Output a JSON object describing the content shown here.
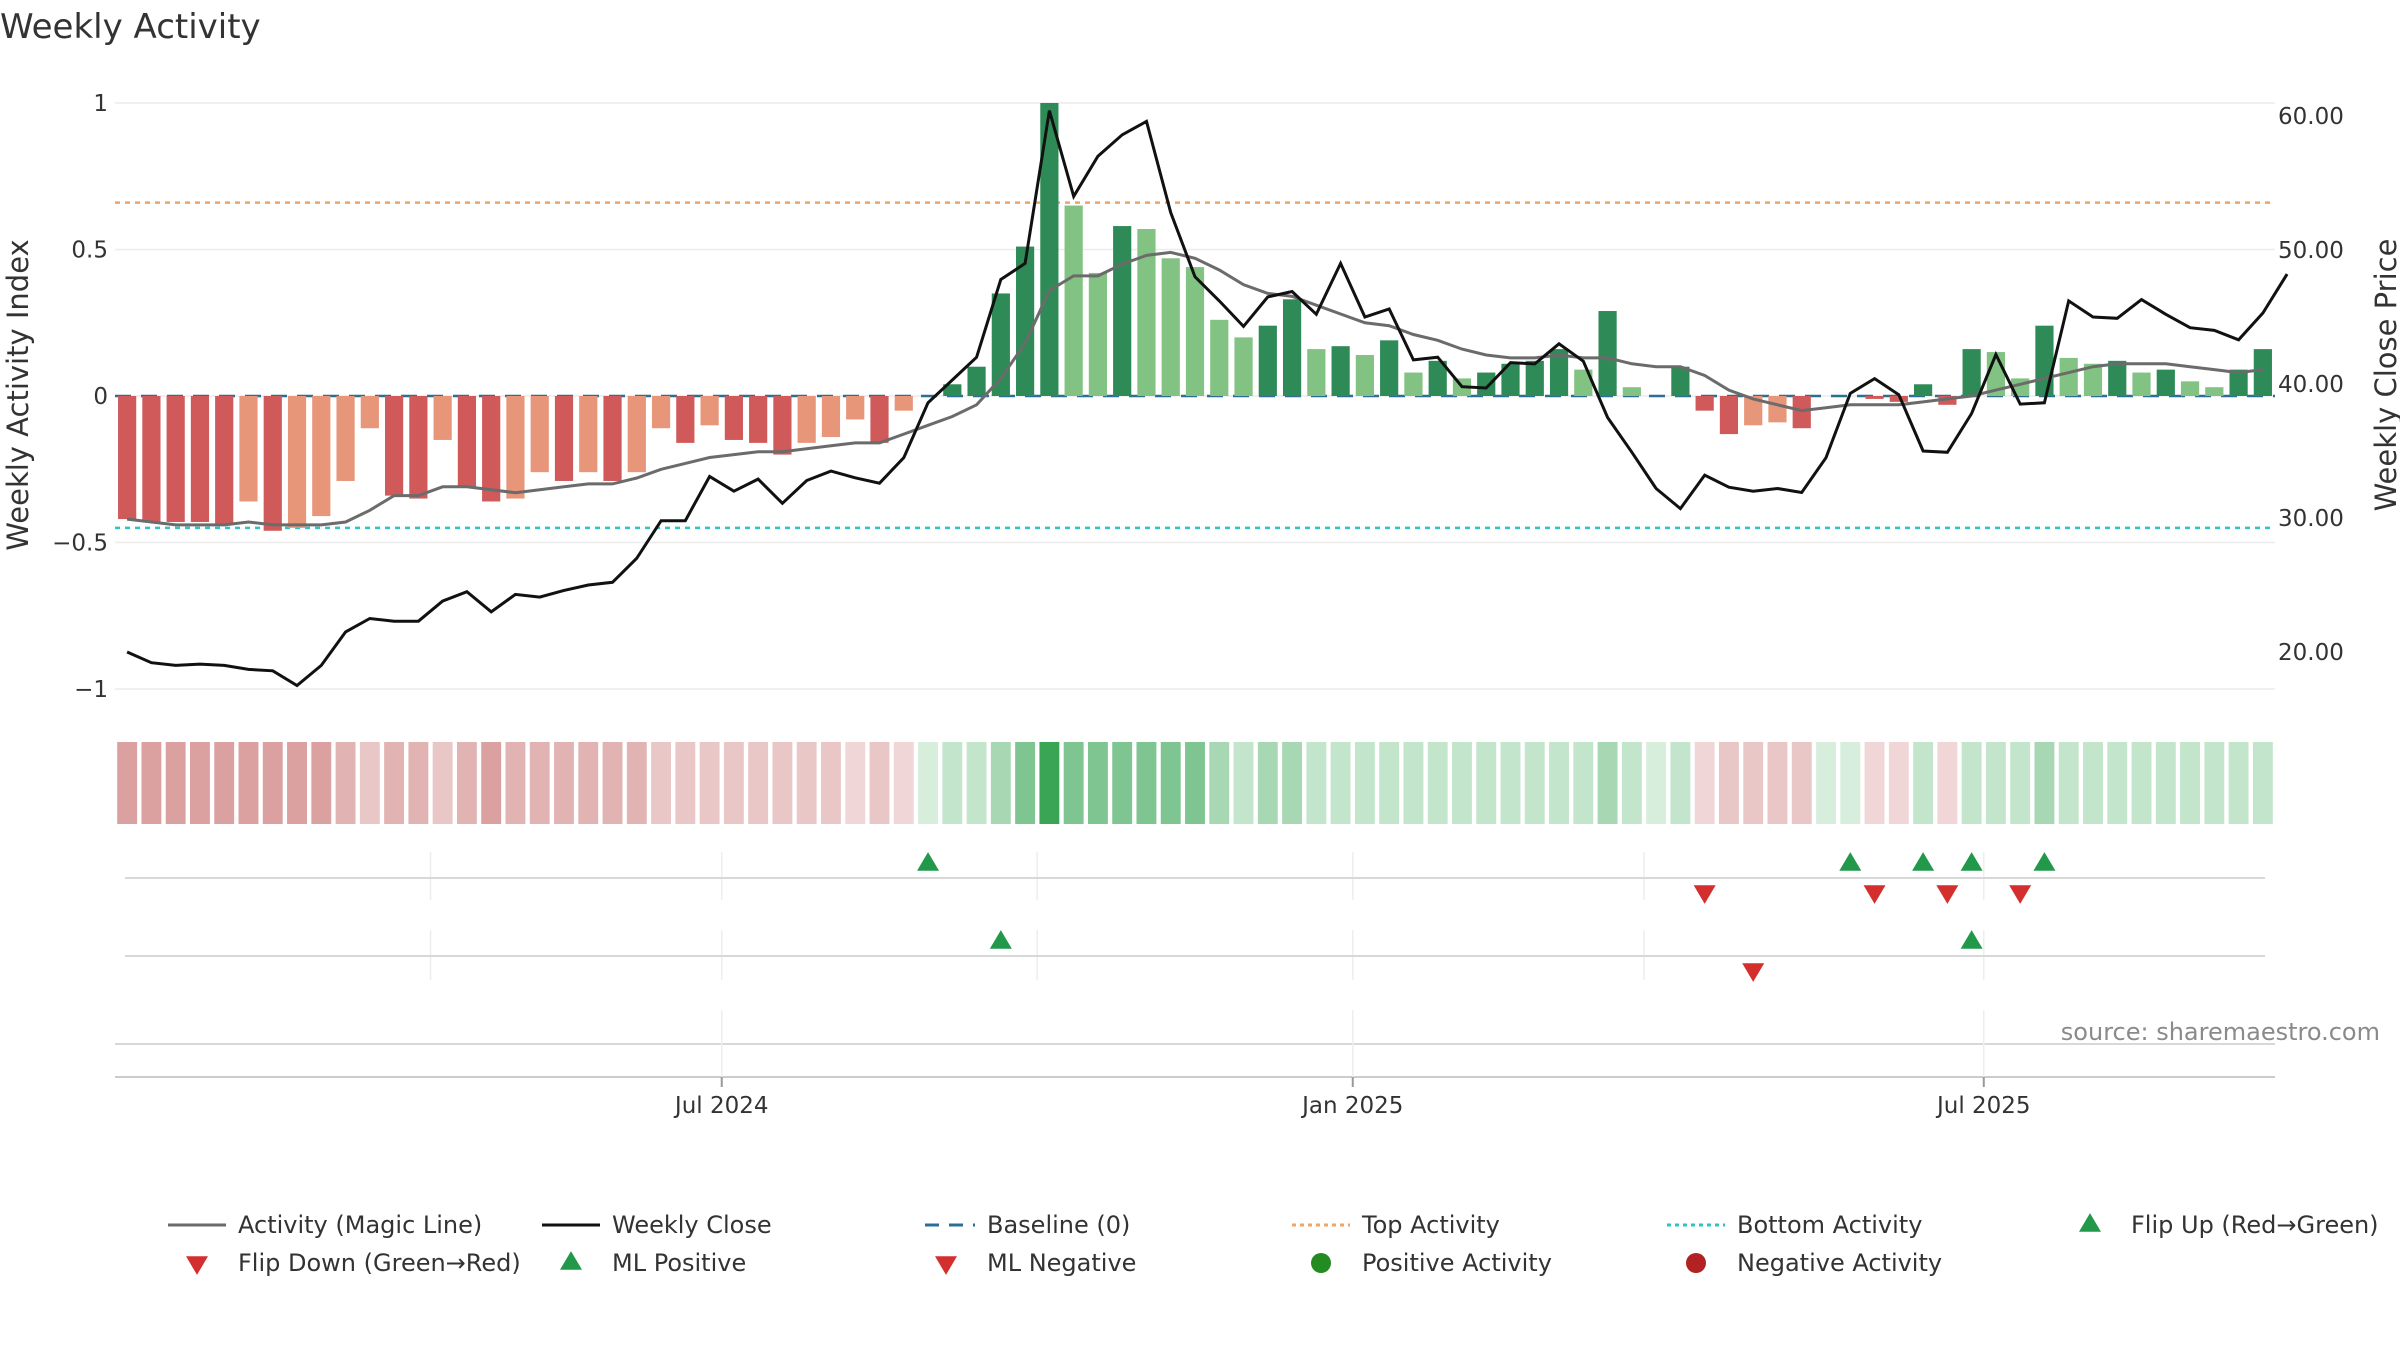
{
  "chart_data": {
    "type": "bar",
    "title": "Weekly Activity",
    "ylabel": "Weekly Activity Index",
    "y2label": "Weekly Close Price",
    "ylim": [
      -1.1,
      1.05
    ],
    "y2lim": [
      15,
      62
    ],
    "yticks": [
      {
        "value": 1,
        "label": "1"
      },
      {
        "value": 0.5,
        "label": "0.5"
      },
      {
        "value": 0,
        "label": "0"
      },
      {
        "value": -0.5,
        "label": "−0.5"
      },
      {
        "value": -1,
        "label": "−1"
      }
    ],
    "y2ticks": [
      {
        "value": 60,
        "label": "60.00"
      },
      {
        "value": 50,
        "label": "50.00"
      },
      {
        "value": 40,
        "label": "40.00"
      },
      {
        "value": 30,
        "label": "30.00"
      },
      {
        "value": 20,
        "label": "20.00"
      }
    ],
    "xticks": [
      {
        "index": 25,
        "label": "Jul 2024"
      },
      {
        "index": 51,
        "label": "Jan 2025"
      },
      {
        "index": 77,
        "label": "Jul 2025"
      }
    ],
    "top_activity": 0.66,
    "bottom_activity": -0.45,
    "activity": [
      -0.42,
      -0.43,
      -0.43,
      -0.43,
      -0.44,
      -0.36,
      -0.46,
      -0.45,
      -0.41,
      -0.29,
      -0.11,
      -0.34,
      -0.35,
      -0.15,
      -0.31,
      -0.36,
      -0.35,
      -0.26,
      -0.29,
      -0.26,
      -0.29,
      -0.26,
      -0.11,
      -0.16,
      -0.1,
      -0.15,
      -0.16,
      -0.2,
      -0.16,
      -0.14,
      -0.08,
      -0.16,
      -0.05,
      0,
      0.04,
      0.1,
      0.35,
      0.51,
      1.0,
      0.65,
      0.42,
      0.58,
      0.57,
      0.47,
      0.44,
      0.26,
      0.2,
      0.24,
      0.33,
      0.16,
      0.17,
      0.14,
      0.19,
      0.08,
      0.12,
      0.06,
      0.08,
      0.11,
      0.12,
      0.16,
      0.09,
      0.29,
      0.03,
      0,
      0.1,
      -0.05,
      -0.13,
      -0.1,
      -0.09,
      -0.11,
      0,
      0,
      -0.01,
      -0.02,
      0.04,
      -0.03,
      0.16,
      0.15,
      0.06,
      0.24,
      0.13,
      0.11,
      0.12,
      0.08,
      0.09,
      0.05,
      0.03,
      0.09,
      0.16
    ],
    "weekly_close": [
      20.0,
      19.2,
      19.0,
      19.1,
      19.0,
      18.7,
      18.6,
      17.5,
      19.0,
      21.5,
      22.5,
      22.3,
      22.3,
      23.8,
      24.5,
      23.0,
      24.3,
      24.1,
      24.6,
      25.0,
      25.2,
      27.0,
      29.8,
      29.8,
      33.1,
      32.0,
      32.9,
      31.1,
      32.8,
      33.5,
      33.0,
      32.6,
      34.5,
      38.6,
      40.3,
      42.0,
      47.8,
      49.0,
      60.4,
      54.0,
      57.0,
      58.6,
      59.6,
      52.8,
      48.0,
      46.2,
      44.3,
      46.5,
      46.9,
      45.2,
      49.0,
      45.0,
      45.6,
      41.8,
      42.0,
      39.8,
      39.7,
      41.6,
      41.5,
      43.0,
      41.7,
      37.5,
      34.9,
      32.2,
      30.7,
      33.2,
      32.3,
      32.0,
      32.2,
      31.9,
      34.5,
      39.3,
      40.4,
      39.2,
      35.0,
      34.9,
      37.8,
      42.2,
      38.5,
      38.6,
      46.2,
      45.0,
      44.9,
      46.3,
      45.2,
      44.2,
      44.0,
      43.3,
      45.3,
      48.2
    ],
    "magic_line": [
      -0.42,
      -0.43,
      -0.44,
      -0.44,
      -0.44,
      -0.43,
      -0.44,
      -0.44,
      -0.44,
      -0.43,
      -0.39,
      -0.34,
      -0.34,
      -0.31,
      -0.31,
      -0.32,
      -0.33,
      -0.32,
      -0.31,
      -0.3,
      -0.3,
      -0.28,
      -0.25,
      -0.23,
      -0.21,
      -0.2,
      -0.19,
      -0.19,
      -0.18,
      -0.17,
      -0.16,
      -0.16,
      -0.13,
      -0.1,
      -0.07,
      -0.03,
      0.06,
      0.18,
      0.36,
      0.41,
      0.41,
      0.45,
      0.48,
      0.49,
      0.47,
      0.43,
      0.38,
      0.35,
      0.34,
      0.31,
      0.28,
      0.25,
      0.24,
      0.21,
      0.19,
      0.16,
      0.14,
      0.13,
      0.13,
      0.14,
      0.13,
      0.13,
      0.11,
      0.1,
      0.1,
      0.07,
      0.02,
      -0.01,
      -0.03,
      -0.05,
      -0.04,
      -0.03,
      -0.03,
      -0.03,
      -0.02,
      -0.01,
      0.0,
      0.02,
      0.04,
      0.06,
      0.08,
      0.1,
      0.11,
      0.11,
      0.11,
      0.1,
      0.09,
      0.08,
      0.09
    ],
    "flip_up_row1": [
      33,
      71,
      74,
      76,
      79
    ],
    "flip_down_row1": [
      65,
      72,
      75,
      78
    ],
    "ml_positive_row2": [
      36,
      76
    ],
    "ml_negative_row2": [
      67
    ],
    "source": "source: sharemaestro.com",
    "legend": [
      {
        "label": "Activity (Magic Line)",
        "kind": "line",
        "color": "#6b6b6b"
      },
      {
        "label": "Weekly Close",
        "kind": "line",
        "color": "#111111"
      },
      {
        "label": "Baseline (0)",
        "kind": "dashed",
        "color": "#2b6f94"
      },
      {
        "label": "Top Activity",
        "kind": "dotted",
        "color": "#f0a464"
      },
      {
        "label": "Bottom Activity",
        "kind": "dotted",
        "color": "#2ec4c4"
      },
      {
        "label": "Flip Up (Red→Green)",
        "kind": "triangle-up",
        "color": "#22994a"
      },
      {
        "label": "Flip Down (Green→Red)",
        "kind": "triangle-down",
        "color": "#d32f2f"
      },
      {
        "label": "ML Positive",
        "kind": "triangle-up",
        "color": "#22994a"
      },
      {
        "label": "ML Negative",
        "kind": "triangle-down",
        "color": "#d32f2f"
      },
      {
        "label": "Positive Activity",
        "kind": "circle",
        "color": "#228b22"
      },
      {
        "label": "Negative Activity",
        "kind": "circle",
        "color": "#b22222"
      }
    ],
    "legend_position": "bottom",
    "grid": true
  }
}
